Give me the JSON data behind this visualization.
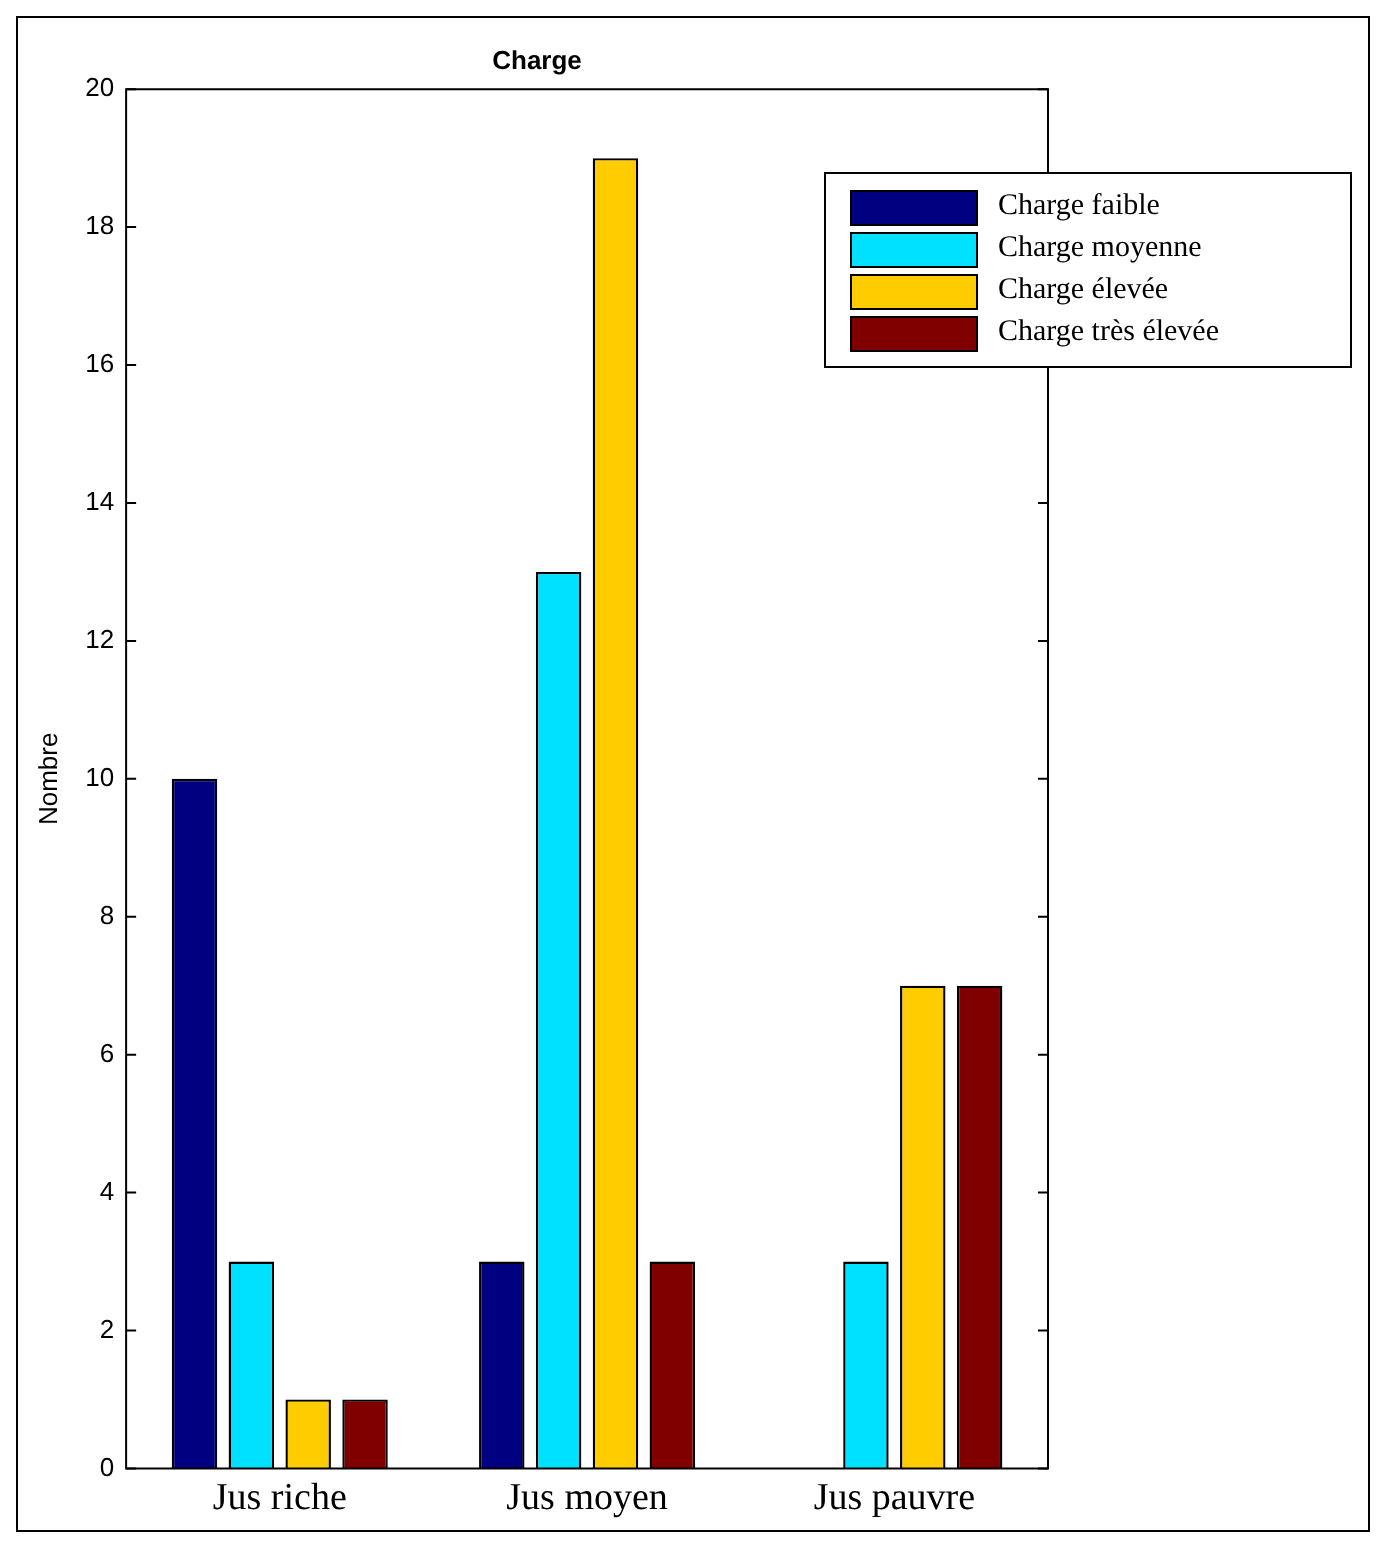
{
  "chart_data": {
    "type": "bar",
    "title": "Charge",
    "ylabel": "Nombre",
    "categories": [
      "Jus riche",
      "Jus moyen",
      "Jus pauvre"
    ],
    "series": [
      {
        "name": "Charge faible",
        "color": "#000080",
        "values": [
          10,
          3,
          0
        ]
      },
      {
        "name": "Charge moyenne",
        "color": "#00e0ff",
        "values": [
          3,
          13,
          3
        ]
      },
      {
        "name": "Charge élevée",
        "color": "#ffcc00",
        "values": [
          1,
          19,
          7
        ]
      },
      {
        "name": "Charge très élevée",
        "color": "#800000",
        "values": [
          1,
          3,
          7
        ]
      }
    ],
    "ylim": [
      0,
      20
    ],
    "yticks": [
      0,
      2,
      4,
      6,
      8,
      10,
      12,
      14,
      16,
      18,
      20
    ],
    "grid": false,
    "legend": "top right"
  }
}
